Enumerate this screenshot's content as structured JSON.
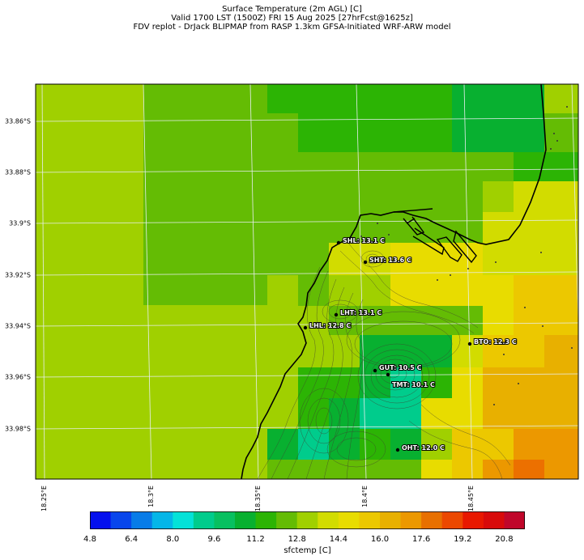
{
  "title": {
    "line1": "Surface Temperature (2m AGL) [C]",
    "line2": "Valid 1700 LST (1500Z) FRI 15 Aug 2025 [27hrFcst@1625z]",
    "line3": "FDV replot - DrJack BLIPMAP from RASP 1.3km GFSA-Initiated WRF-ARW model"
  },
  "axes": {
    "lat_labels": [
      "33.86°S",
      "33.88°S",
      "33.9°S",
      "33.92°S",
      "33.94°S",
      "33.96°S",
      "33.98°S"
    ],
    "lon_labels": [
      "18.25°E",
      "18.3°E",
      "18.35°E",
      "18.4°E",
      "18.45°E"
    ]
  },
  "stations": [
    {
      "label": "SHL: 13.1 C"
    },
    {
      "label": "SHT: 13.6 C"
    },
    {
      "label": "LHT: 13.1 C"
    },
    {
      "label": "LHL: 12.8 C"
    },
    {
      "label": "BTO: 12.3 C"
    },
    {
      "label": "GUT: 10.5 C"
    },
    {
      "label": "TMT: 10.1 C"
    },
    {
      "label": "OHT: 12.0 C"
    }
  ],
  "colorbar": {
    "label": "sfctemp [C]",
    "ticks": [
      "4.8",
      "6.4",
      "8.0",
      "9.6",
      "11.2",
      "12.8",
      "14.4",
      "16.0",
      "17.6",
      "19.2",
      "20.8"
    ],
    "colors": [
      "#0410ee",
      "#0846ec",
      "#087ce8",
      "#04b6e8",
      "#04e2d8",
      "#00cc8c",
      "#08c060",
      "#08b030",
      "#2cb404",
      "#64bc04",
      "#a0d000",
      "#d2dc00",
      "#e8dc00",
      "#ecc800",
      "#e8b000",
      "#ec9800",
      "#e87000",
      "#ec4800",
      "#e81800",
      "#d80a0a",
      "#c0062a"
    ]
  }
}
